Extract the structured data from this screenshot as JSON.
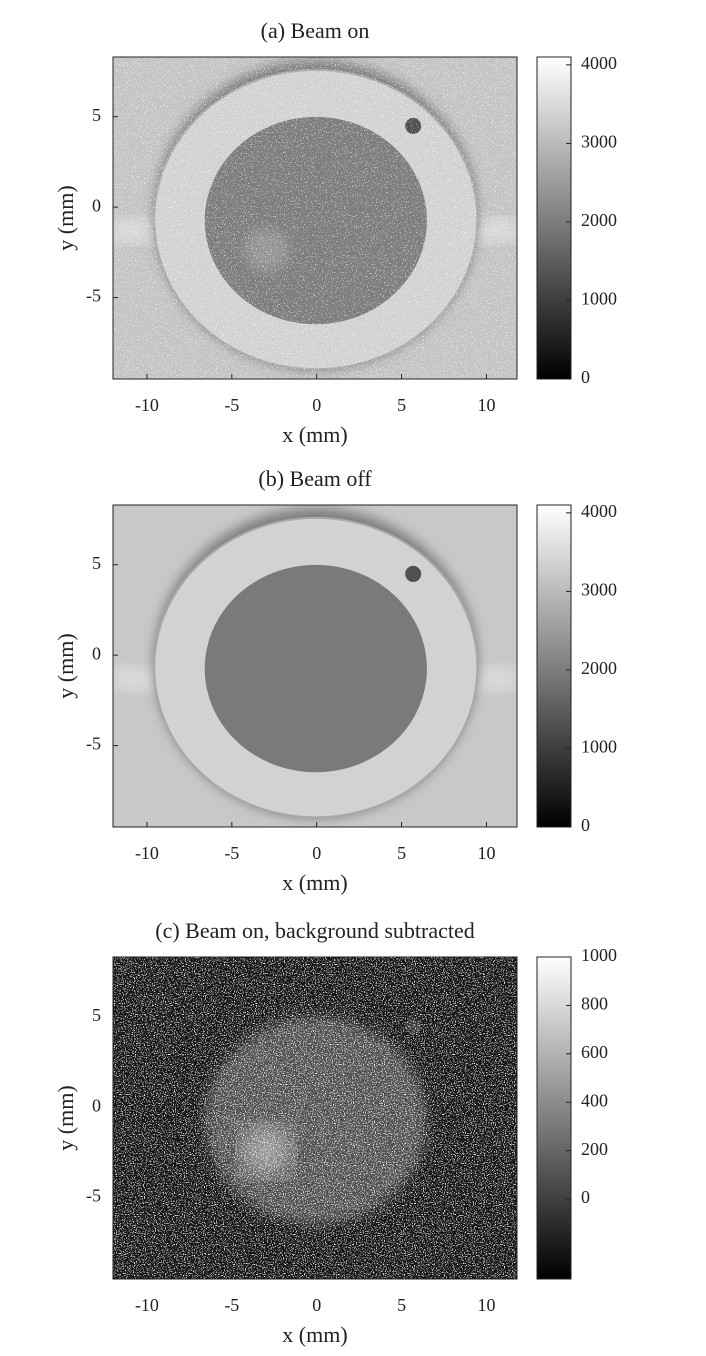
{
  "chart_data": [
    {
      "type": "image",
      "title": "(a) Beam on",
      "xlabel": "x (mm)",
      "ylabel": "y (mm)",
      "xlim": [
        -12,
        11.8
      ],
      "ylim": [
        -9.5,
        8.3
      ],
      "xticks": [
        -10,
        -5,
        0,
        5,
        10
      ],
      "yticks": [
        -5,
        0,
        5
      ],
      "clim": [
        0,
        4100
      ],
      "cticks": [
        0,
        1000,
        2000,
        3000,
        4000
      ],
      "colormap": "gray"
    },
    {
      "type": "image",
      "title": "(b) Beam off",
      "xlabel": "x (mm)",
      "ylabel": "y (mm)",
      "xlim": [
        -12,
        11.8
      ],
      "ylim": [
        -9.5,
        8.3
      ],
      "xticks": [
        -10,
        -5,
        0,
        5,
        10
      ],
      "yticks": [
        -5,
        0,
        5
      ],
      "clim": [
        0,
        4100
      ],
      "cticks": [
        0,
        1000,
        2000,
        3000,
        4000
      ],
      "colormap": "gray"
    },
    {
      "type": "image",
      "title": "(c) Beam on, background subtracted",
      "xlabel": "x (mm)",
      "ylabel": "y (mm)",
      "xlim": [
        -12,
        11.8
      ],
      "ylim": [
        -9.5,
        8.3
      ],
      "xticks": [
        -10,
        -5,
        0,
        5,
        10
      ],
      "yticks": [
        -5,
        0,
        5
      ],
      "clim": [
        -330,
        1000
      ],
      "cticks": [
        0,
        200,
        400,
        600,
        800,
        1000
      ],
      "colormap": "gray"
    }
  ]
}
